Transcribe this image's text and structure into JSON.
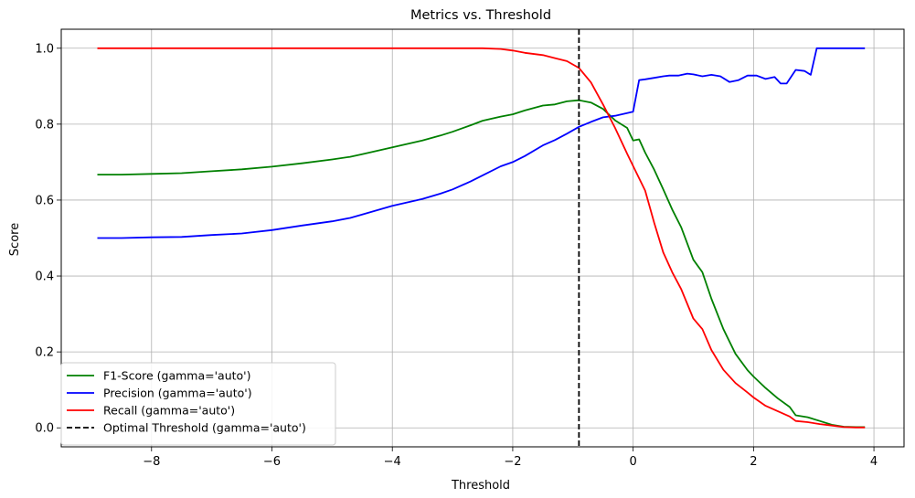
{
  "chart_data": {
    "type": "line",
    "title": "Metrics vs. Threshold",
    "xlabel": "Threshold",
    "ylabel": "Score",
    "xlim": [
      -9.5,
      4.5
    ],
    "ylim": [
      -0.05,
      1.05
    ],
    "xticks": [
      -8,
      -6,
      -4,
      -2,
      0,
      2,
      4
    ],
    "xtick_labels": [
      "−8",
      "−6",
      "−4",
      "−2",
      "0",
      "2",
      "4"
    ],
    "yticks": [
      0.0,
      0.2,
      0.4,
      0.6,
      0.8,
      1.0
    ],
    "ytick_labels": [
      "0.0",
      "0.2",
      "0.4",
      "0.6",
      "0.8",
      "1.0"
    ],
    "grid": true,
    "legend_position": "lower-left",
    "series": [
      {
        "name": "F1-Score (gamma='auto')",
        "color": "#008000",
        "style": "solid",
        "x": [
          -8.9,
          -8.5,
          -8.0,
          -7.5,
          -7.0,
          -6.5,
          -6.0,
          -5.5,
          -5.0,
          -4.7,
          -4.5,
          -4.0,
          -3.5,
          -3.2,
          -3.0,
          -2.7,
          -2.5,
          -2.2,
          -2.0,
          -1.8,
          -1.5,
          -1.3,
          -1.1,
          -0.9,
          -0.7,
          -0.5,
          -0.3,
          -0.1,
          0.0,
          0.1,
          0.2,
          0.35,
          0.5,
          0.65,
          0.8,
          1.0,
          1.15,
          1.3,
          1.5,
          1.7,
          1.9,
          2.0,
          2.2,
          2.4,
          2.6,
          2.7,
          2.9,
          3.1,
          3.3,
          3.5,
          3.7,
          3.85
        ],
        "y": [
          0.667,
          0.667,
          0.669,
          0.671,
          0.676,
          0.681,
          0.688,
          0.697,
          0.707,
          0.714,
          0.721,
          0.739,
          0.757,
          0.77,
          0.78,
          0.797,
          0.809,
          0.82,
          0.826,
          0.836,
          0.849,
          0.852,
          0.86,
          0.863,
          0.857,
          0.84,
          0.81,
          0.79,
          0.757,
          0.76,
          0.725,
          0.68,
          0.628,
          0.575,
          0.528,
          0.443,
          0.41,
          0.34,
          0.26,
          0.195,
          0.152,
          0.135,
          0.105,
          0.078,
          0.055,
          0.033,
          0.028,
          0.018,
          0.008,
          0.003,
          0.002,
          0.002
        ]
      },
      {
        "name": "Precision (gamma='auto')",
        "color": "#0000ff",
        "style": "solid",
        "x": [
          -8.9,
          -8.5,
          -8.0,
          -7.5,
          -7.0,
          -6.5,
          -6.0,
          -5.5,
          -5.0,
          -4.7,
          -4.5,
          -4.0,
          -3.5,
          -3.2,
          -3.0,
          -2.7,
          -2.5,
          -2.2,
          -2.0,
          -1.8,
          -1.5,
          -1.3,
          -1.1,
          -0.9,
          -0.7,
          -0.5,
          -0.3,
          -0.1,
          0.0,
          0.1,
          0.2,
          0.35,
          0.5,
          0.6,
          0.75,
          0.9,
          1.0,
          1.15,
          1.3,
          1.45,
          1.6,
          1.75,
          1.9,
          2.05,
          2.2,
          2.35,
          2.45,
          2.55,
          2.7,
          2.85,
          2.95,
          3.05,
          3.3,
          3.6,
          3.85
        ],
        "y": [
          0.5,
          0.5,
          0.502,
          0.503,
          0.508,
          0.512,
          0.521,
          0.533,
          0.544,
          0.553,
          0.562,
          0.585,
          0.603,
          0.617,
          0.628,
          0.649,
          0.665,
          0.689,
          0.7,
          0.716,
          0.744,
          0.758,
          0.775,
          0.793,
          0.806,
          0.818,
          0.822,
          0.829,
          0.833,
          0.916,
          0.918,
          0.922,
          0.926,
          0.928,
          0.928,
          0.933,
          0.931,
          0.926,
          0.93,
          0.926,
          0.911,
          0.916,
          0.928,
          0.928,
          0.919,
          0.924,
          0.907,
          0.907,
          0.943,
          0.94,
          0.93,
          1.0,
          1.0,
          1.0,
          1.0
        ]
      },
      {
        "name": "Recall (gamma='auto')",
        "color": "#ff0000",
        "style": "solid",
        "x": [
          -8.9,
          -8.0,
          -7.0,
          -6.0,
          -5.0,
          -4.0,
          -3.0,
          -2.5,
          -2.2,
          -2.0,
          -1.8,
          -1.5,
          -1.3,
          -1.1,
          -0.9,
          -0.7,
          -0.5,
          -0.3,
          -0.1,
          0.0,
          0.2,
          0.35,
          0.5,
          0.65,
          0.8,
          1.0,
          1.15,
          1.3,
          1.5,
          1.7,
          1.9,
          2.0,
          2.2,
          2.4,
          2.6,
          2.7,
          2.9,
          3.1,
          3.3,
          3.5,
          3.7,
          3.85
        ],
        "y": [
          1.0,
          1.0,
          1.0,
          1.0,
          1.0,
          1.0,
          1.0,
          1.0,
          0.998,
          0.994,
          0.988,
          0.982,
          0.974,
          0.966,
          0.948,
          0.91,
          0.852,
          0.79,
          0.722,
          0.69,
          0.625,
          0.54,
          0.462,
          0.41,
          0.365,
          0.288,
          0.26,
          0.205,
          0.153,
          0.118,
          0.093,
          0.08,
          0.058,
          0.044,
          0.03,
          0.018,
          0.015,
          0.01,
          0.006,
          0.002,
          0.001,
          0.001
        ]
      },
      {
        "name": "Optimal Threshold (gamma='auto')",
        "color": "#000000",
        "style": "dashed",
        "vline_x": -0.9
      }
    ]
  }
}
